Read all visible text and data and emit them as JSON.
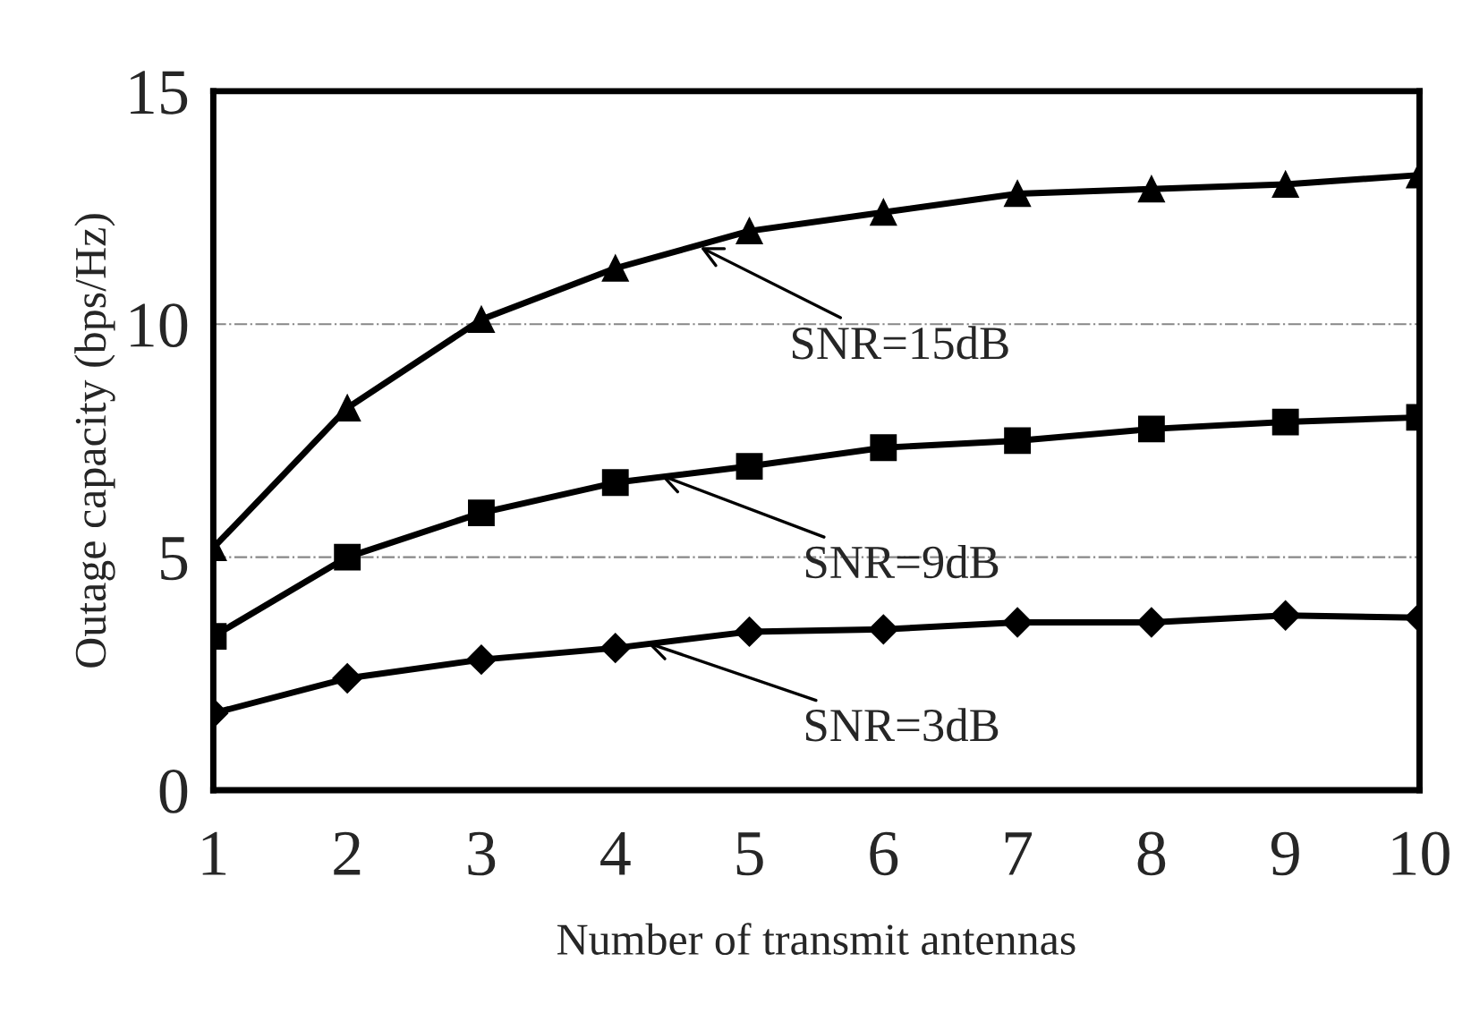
{
  "chart_data": {
    "type": "line",
    "xlabel": "Number of transmit antennas",
    "ylabel": "Outage capacity (bps/Hz)",
    "x": [
      1,
      2,
      3,
      4,
      5,
      6,
      7,
      8,
      9,
      10
    ],
    "series": [
      {
        "color": "#000000",
        "marker": "triangle",
        "values": [
          5.2,
          8.2,
          10.1,
          11.2,
          12.0,
          12.4,
          12.8,
          12.9,
          13.0,
          13.2
        ]
      },
      {
        "color": "#000000",
        "marker": "square",
        "values": [
          3.3,
          5.0,
          5.95,
          6.6,
          6.95,
          7.35,
          7.5,
          7.75,
          7.9,
          8.0
        ]
      },
      {
        "color": "#000000",
        "marker": "diamond",
        "values": [
          1.65,
          2.4,
          2.8,
          3.05,
          3.4,
          3.45,
          3.6,
          3.6,
          3.75,
          3.7
        ]
      }
    ],
    "annotations": [
      {
        "text": "SNR=15dB",
        "x": 4.6,
        "y": 11.7
      },
      {
        "text": "SNR=9dB",
        "x": 4.3,
        "y": 6.8
      },
      {
        "text": "SNR=3dB",
        "x": 4.2,
        "y": 3.2
      }
    ],
    "xlim": [
      1,
      10
    ],
    "xticks": [
      1,
      2,
      3,
      4,
      5,
      6,
      7,
      8,
      9,
      10
    ],
    "ylim": [
      0,
      15
    ],
    "yticks": [
      0,
      5,
      10,
      15
    ],
    "grid": "y",
    "legend": false,
    "line_style": "solid"
  }
}
